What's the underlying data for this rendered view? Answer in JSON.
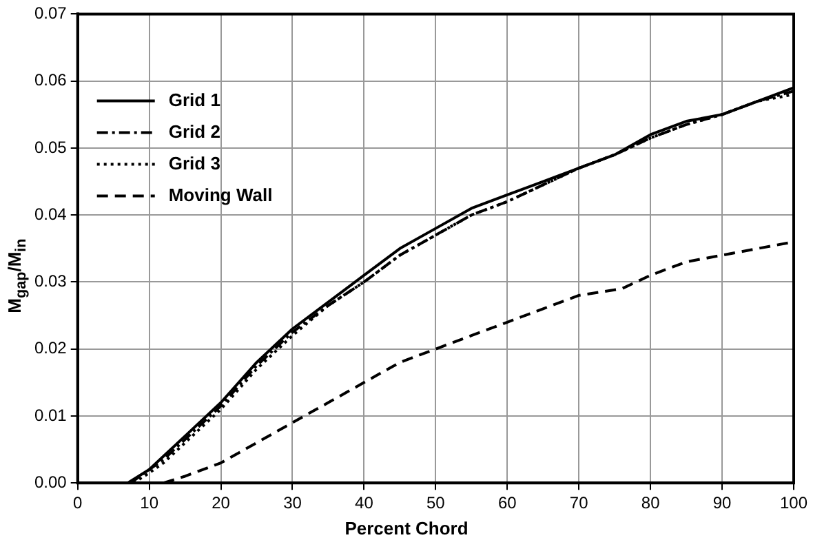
{
  "chart_data": {
    "type": "line",
    "xlabel": "Percent Chord",
    "ylabel": "M$_{gap}$/M$_{in}$",
    "xlim": [
      0,
      100
    ],
    "xticks": [
      0,
      10,
      20,
      30,
      40,
      50,
      60,
      70,
      80,
      90,
      100
    ],
    "ylim": [
      0,
      0.07
    ],
    "yticks": [
      {
        "value": 0,
        "label": "0.00"
      },
      {
        "value": 0.01,
        "label": "0.01"
      },
      {
        "value": 0.02,
        "label": "0.02"
      },
      {
        "value": 0.03,
        "label": "0.03"
      },
      {
        "value": 0.04,
        "label": "0.04"
      },
      {
        "value": 0.05,
        "label": "0.05"
      },
      {
        "value": 0.06,
        "label": "0.06"
      },
      {
        "value": 0.07,
        "label": "0.07"
      }
    ],
    "grid": true,
    "legend": "top left",
    "marker": "none",
    "series": [
      {
        "name": "Grid 1",
        "color": "#000000",
        "line_style": "solid",
        "x": [
          7,
          10,
          12,
          15,
          20,
          25,
          30,
          35,
          40,
          45,
          50,
          55,
          60,
          65,
          70,
          75,
          80,
          85,
          90,
          95,
          100
        ],
        "values": [
          0,
          0.002,
          0.004,
          0.007,
          0.012,
          0.018,
          0.023,
          0.027,
          0.031,
          0.035,
          0.038,
          0.041,
          0.043,
          0.045,
          0.047,
          0.049,
          0.052,
          0.054,
          0.055,
          0.057,
          0.059
        ]
      },
      {
        "name": "Grid 2",
        "color": "#000000",
        "line_style": "dashdot",
        "x": [
          7.4,
          10,
          12,
          15,
          20,
          25,
          30,
          35,
          40,
          45,
          50,
          55,
          60,
          65,
          70,
          75,
          80,
          85,
          90,
          95,
          100
        ],
        "values": [
          0,
          0.002,
          0.0035,
          0.0065,
          0.0115,
          0.0175,
          0.0225,
          0.0265,
          0.03,
          0.034,
          0.037,
          0.04,
          0.042,
          0.0445,
          0.047,
          0.049,
          0.0515,
          0.0535,
          0.055,
          0.057,
          0.0585
        ]
      },
      {
        "name": "Grid 3",
        "color": "#000000",
        "line_style": "dotted",
        "x": [
          7.8,
          10,
          12,
          15,
          20,
          25,
          30,
          35,
          40,
          45,
          50,
          55,
          60,
          65,
          70,
          75,
          80,
          85,
          90,
          95,
          100
        ],
        "values": [
          0,
          0.0015,
          0.003,
          0.006,
          0.011,
          0.017,
          0.022,
          0.0265,
          0.03,
          0.034,
          0.037,
          0.04,
          0.042,
          0.0445,
          0.047,
          0.049,
          0.0515,
          0.0535,
          0.055,
          0.057,
          0.058
        ]
      },
      {
        "name": "Moving Wall",
        "color": "#000000",
        "line_style": "dashed",
        "x": [
          12,
          15,
          20,
          25,
          30,
          35,
          40,
          45,
          50,
          55,
          60,
          65,
          70,
          76,
          80,
          85,
          90,
          95,
          100
        ],
        "values": [
          0,
          0.001,
          0.003,
          0.006,
          0.009,
          0.012,
          0.015,
          0.018,
          0.02,
          0.022,
          0.024,
          0.026,
          0.028,
          0.029,
          0.031,
          0.033,
          0.034,
          0.035,
          0.036
        ]
      }
    ]
  }
}
